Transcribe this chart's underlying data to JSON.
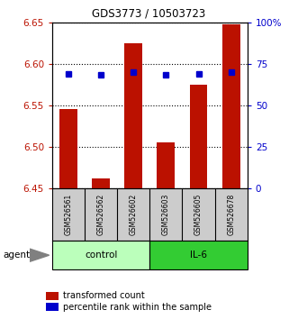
{
  "title": "GDS3773 / 10503723",
  "samples": [
    "GSM526561",
    "GSM526562",
    "GSM526602",
    "GSM526603",
    "GSM526605",
    "GSM526678"
  ],
  "red_values": [
    6.545,
    6.462,
    6.625,
    6.505,
    6.575,
    6.648
  ],
  "blue_values": [
    6.588,
    6.587,
    6.59,
    6.587,
    6.588,
    6.59
  ],
  "ylim_left": [
    6.45,
    6.65
  ],
  "ylim_right": [
    0,
    100
  ],
  "right_ticks": [
    0,
    25,
    50,
    75,
    100
  ],
  "right_tick_labels": [
    "0",
    "25",
    "50",
    "75",
    "100%"
  ],
  "left_ticks": [
    6.45,
    6.5,
    6.55,
    6.6,
    6.65
  ],
  "left_tick_labels": [
    "6.45",
    "6.50",
    "6.55",
    "6.60",
    "6.65"
  ],
  "bar_color": "#bb1100",
  "dot_color": "#0000cc",
  "control_color": "#bbffbb",
  "il6_color": "#33cc33",
  "sample_bg_color": "#cccccc",
  "legend_red": "transformed count",
  "legend_blue": "percentile rank within the sample",
  "agent_label": "agent",
  "group_control_label": "control",
  "group_il6_label": "IL-6",
  "bar_width": 0.55
}
